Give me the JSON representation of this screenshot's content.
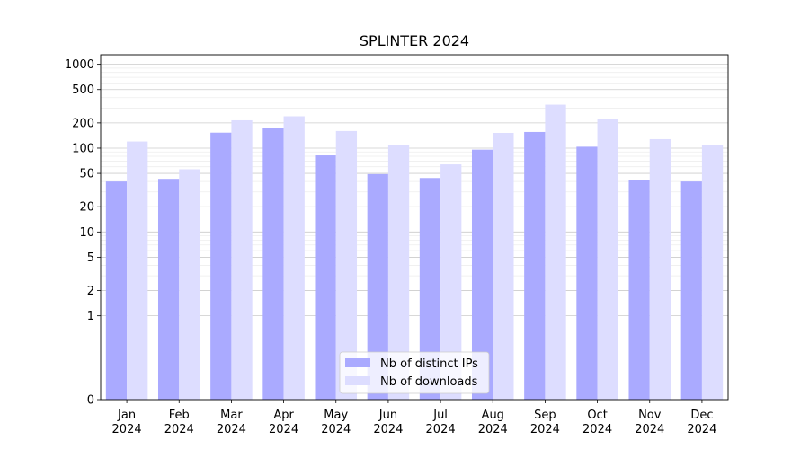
{
  "chart_data": {
    "type": "bar",
    "title": "SPLINTER 2024",
    "xlabel": "",
    "ylabel": "",
    "y_scale": "symlog",
    "ylim": [
      0,
      1300
    ],
    "y_ticks": [
      0,
      1,
      2,
      5,
      10,
      20,
      50,
      100,
      200,
      500,
      1000
    ],
    "grid": true,
    "legend_position": "bottom-center",
    "categories": [
      [
        "Jan",
        "2024"
      ],
      [
        "Feb",
        "2024"
      ],
      [
        "Mar",
        "2024"
      ],
      [
        "Apr",
        "2024"
      ],
      [
        "May",
        "2024"
      ],
      [
        "Jun",
        "2024"
      ],
      [
        "Jul",
        "2024"
      ],
      [
        "Aug",
        "2024"
      ],
      [
        "Sep",
        "2024"
      ],
      [
        "Oct",
        "2024"
      ],
      [
        "Nov",
        "2024"
      ],
      [
        "Dec",
        "2024"
      ]
    ],
    "series": [
      {
        "name": "Nb of distinct IPs",
        "color": "#aaaaff",
        "values": [
          40,
          43,
          153,
          172,
          82,
          49,
          44,
          96,
          156,
          104,
          42,
          40
        ]
      },
      {
        "name": "Nb of downloads",
        "color": "#ddddff",
        "values": [
          120,
          56,
          215,
          240,
          160,
          110,
          64,
          152,
          330,
          220,
          128,
          110
        ]
      }
    ]
  }
}
